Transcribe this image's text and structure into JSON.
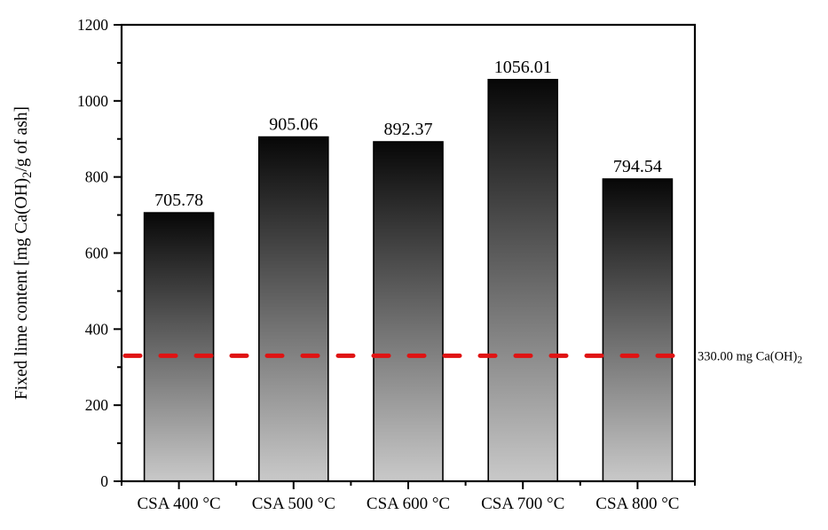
{
  "figure": {
    "background": "#ffffff",
    "text_color": "#000000"
  },
  "chart_data": {
    "type": "bar",
    "title": "",
    "xlabel": "",
    "ylabel": "Fixed lime content [mg Ca(OH)2/g of ash]",
    "ylabel_parts": [
      {
        "text": "Fixed lime content [mg Ca(OH)",
        "sub": false
      },
      {
        "text": "2",
        "sub": true
      },
      {
        "text": "/g of ash]",
        "sub": false
      }
    ],
    "categories": [
      "CSA 400 °C",
      "CSA 500 °C",
      "CSA 600 °C",
      "CSA 700 °C",
      "CSA 800 °C"
    ],
    "values": [
      705.78,
      905.06,
      892.37,
      1056.01,
      794.54
    ],
    "value_labels": [
      "705.78",
      "905.06",
      "892.37",
      "1056.01",
      "794.54"
    ],
    "ylim": [
      0,
      1200
    ],
    "yticks": [
      0,
      200,
      400,
      600,
      800,
      1000,
      1200
    ],
    "minor_yticks": [
      100,
      300,
      500,
      700,
      900,
      1100
    ],
    "grid": false,
    "legend": false,
    "bar_outline_color": "#000000",
    "bar_gradient_top": "#070707",
    "bar_gradient_bottom": "#c9c9c9",
    "axis_color": "#000000",
    "reference_line": {
      "value": 330,
      "style": "dashed",
      "color": "#e01313",
      "label": "330.00 mg Ca(OH)2",
      "label_parts": [
        {
          "text": "330.00 mg Ca(OH)",
          "sub": false
        },
        {
          "text": "2",
          "sub": true
        }
      ]
    }
  }
}
